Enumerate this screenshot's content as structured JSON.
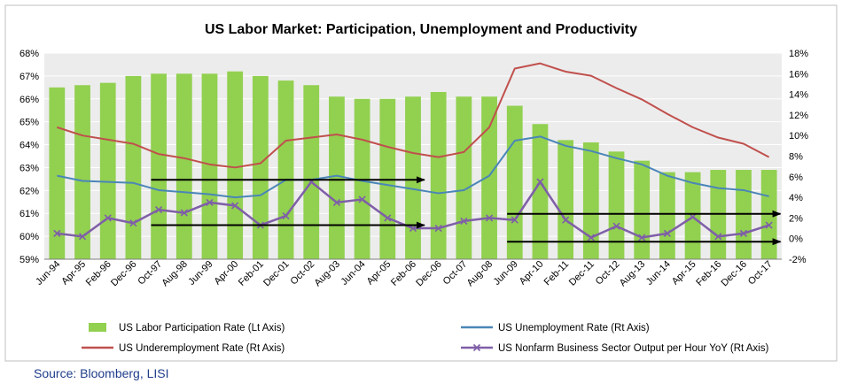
{
  "source": "Source: Bloomberg, LISI",
  "chart_data": {
    "type": "bar",
    "title": "US Labor Market: Participation, Unemployment and Productivity",
    "left_axis": {
      "ylim": [
        59,
        68
      ],
      "ticks": [
        "59%",
        "60%",
        "61%",
        "62%",
        "63%",
        "64%",
        "65%",
        "66%",
        "67%",
        "68%"
      ]
    },
    "right_axis": {
      "ylim": [
        -2,
        18
      ],
      "ticks": [
        "-2%",
        "0%",
        "2%",
        "4%",
        "6%",
        "8%",
        "10%",
        "12%",
        "14%",
        "16%",
        "18%"
      ]
    },
    "x_tick_labels": [
      "Jun-94",
      "Apr-95",
      "Feb-96",
      "Dec-96",
      "Oct-97",
      "Aug-98",
      "Jun-99",
      "Apr-00",
      "Feb-01",
      "Dec-01",
      "Oct-02",
      "Aug-03",
      "Jun-04",
      "Apr-05",
      "Feb-06",
      "Dec-06",
      "Oct-07",
      "Aug-08",
      "Jun-09",
      "Apr-10",
      "Feb-11",
      "Dec-11",
      "Oct-12",
      "Aug-13",
      "Jun-14",
      "Apr-15",
      "Feb-16",
      "Dec-16",
      "Oct-17"
    ],
    "grid": true,
    "legend_position": "bottom",
    "colors": {
      "participation": "#92d050",
      "unemployment": "#4a86b8",
      "underemployment": "#c0504d",
      "productivity": "#7f5fa8",
      "plot_bg": "#ececec"
    },
    "series": [
      {
        "name": "US Labor Participation Rate (Lt Axis)",
        "axis": "left",
        "x": [
          "Jun-94",
          "Apr-95",
          "Feb-96",
          "Dec-96",
          "Oct-97",
          "Aug-98",
          "Jun-99",
          "Apr-00",
          "Feb-01",
          "Dec-01",
          "Oct-02",
          "Aug-03",
          "Jun-04",
          "Apr-05",
          "Feb-06",
          "Dec-06",
          "Oct-07",
          "Aug-08",
          "Jun-09",
          "Apr-10",
          "Feb-11",
          "Dec-11",
          "Oct-12",
          "Aug-13",
          "Jun-14",
          "Apr-15",
          "Feb-16",
          "Dec-16",
          "Oct-17"
        ],
        "values": [
          66.5,
          66.6,
          66.7,
          67.0,
          67.1,
          67.1,
          67.1,
          67.2,
          67.0,
          66.8,
          66.6,
          66.1,
          66.0,
          66.0,
          66.1,
          66.3,
          66.1,
          66.1,
          65.7,
          64.9,
          64.2,
          64.1,
          63.7,
          63.3,
          62.8,
          62.8,
          62.9,
          62.9,
          62.9
        ]
      },
      {
        "name": "US Unemployment Rate (Rt Axis)",
        "axis": "right",
        "x": [
          "Jun-94",
          "Apr-95",
          "Feb-96",
          "Dec-96",
          "Oct-97",
          "Aug-98",
          "Jun-99",
          "Apr-00",
          "Feb-01",
          "Dec-01",
          "Oct-02",
          "Aug-03",
          "Jun-04",
          "Apr-05",
          "Feb-06",
          "Dec-06",
          "Oct-07",
          "Aug-08",
          "Jun-09",
          "Apr-10",
          "Feb-11",
          "Dec-11",
          "Oct-12",
          "Aug-13",
          "Jun-14",
          "Apr-15",
          "Feb-16",
          "Dec-16",
          "Oct-17"
        ],
        "values": [
          6.1,
          5.6,
          5.5,
          5.4,
          4.7,
          4.5,
          4.3,
          4.0,
          4.2,
          5.7,
          5.7,
          6.1,
          5.6,
          5.2,
          4.8,
          4.4,
          4.7,
          6.1,
          9.5,
          9.9,
          9.0,
          8.5,
          7.8,
          7.2,
          6.1,
          5.4,
          4.9,
          4.7,
          4.1
        ]
      },
      {
        "name": "US Underemployment Rate (Rt Axis)",
        "axis": "right",
        "x": [
          "Jun-94",
          "Apr-95",
          "Feb-96",
          "Dec-96",
          "Oct-97",
          "Aug-98",
          "Jun-99",
          "Apr-00",
          "Feb-01",
          "Dec-01",
          "Oct-02",
          "Aug-03",
          "Jun-04",
          "Apr-05",
          "Feb-06",
          "Dec-06",
          "Oct-07",
          "Aug-08",
          "Jun-09",
          "Apr-10",
          "Feb-11",
          "Dec-11",
          "Oct-12",
          "Aug-13",
          "Jun-14",
          "Apr-15",
          "Feb-16",
          "Dec-16",
          "Oct-17"
        ],
        "values": [
          10.8,
          10.0,
          9.6,
          9.2,
          8.2,
          7.8,
          7.2,
          6.9,
          7.3,
          9.5,
          9.8,
          10.1,
          9.6,
          8.9,
          8.3,
          7.9,
          8.4,
          10.8,
          16.5,
          17.0,
          16.2,
          15.8,
          14.6,
          13.5,
          12.1,
          10.8,
          9.8,
          9.2,
          7.9
        ]
      },
      {
        "name": "US Nonfarm Business Sector Output per Hour YoY (Rt Axis)",
        "axis": "right",
        "x": [
          "Jun-94",
          "Apr-95",
          "Feb-96",
          "Dec-96",
          "Oct-97",
          "Aug-98",
          "Jun-99",
          "Apr-00",
          "Feb-01",
          "Dec-01",
          "Oct-02",
          "Aug-03",
          "Jun-04",
          "Apr-05",
          "Feb-06",
          "Dec-06",
          "Oct-07",
          "Aug-08",
          "Jun-09",
          "Apr-10",
          "Feb-11",
          "Dec-11",
          "Oct-12",
          "Aug-13",
          "Jun-14",
          "Apr-15",
          "Feb-16",
          "Dec-16",
          "Oct-17"
        ],
        "values": [
          0.5,
          0.2,
          2.0,
          1.5,
          2.8,
          2.5,
          3.5,
          3.2,
          1.3,
          2.2,
          5.5,
          3.5,
          3.8,
          2.0,
          1.0,
          1.0,
          1.7,
          2.0,
          1.8,
          5.5,
          1.8,
          0.1,
          1.2,
          0.1,
          0.5,
          2.1,
          0.2,
          0.5,
          1.3
        ]
      }
    ],
    "annotations": [
      {
        "type": "arrow",
        "axis": "right",
        "from_x": "Oct-97",
        "to_x": "Feb-06",
        "y": 5.7
      },
      {
        "type": "arrow",
        "axis": "right",
        "from_x": "Oct-97",
        "to_x": "Feb-06",
        "y": 1.3
      },
      {
        "type": "arrow",
        "axis": "right",
        "from_x": "Jun-09",
        "to_x": "Oct-17",
        "y": 2.4
      },
      {
        "type": "arrow",
        "axis": "right",
        "from_x": "Jun-09",
        "to_x": "Oct-17",
        "y": -0.3
      }
    ]
  }
}
